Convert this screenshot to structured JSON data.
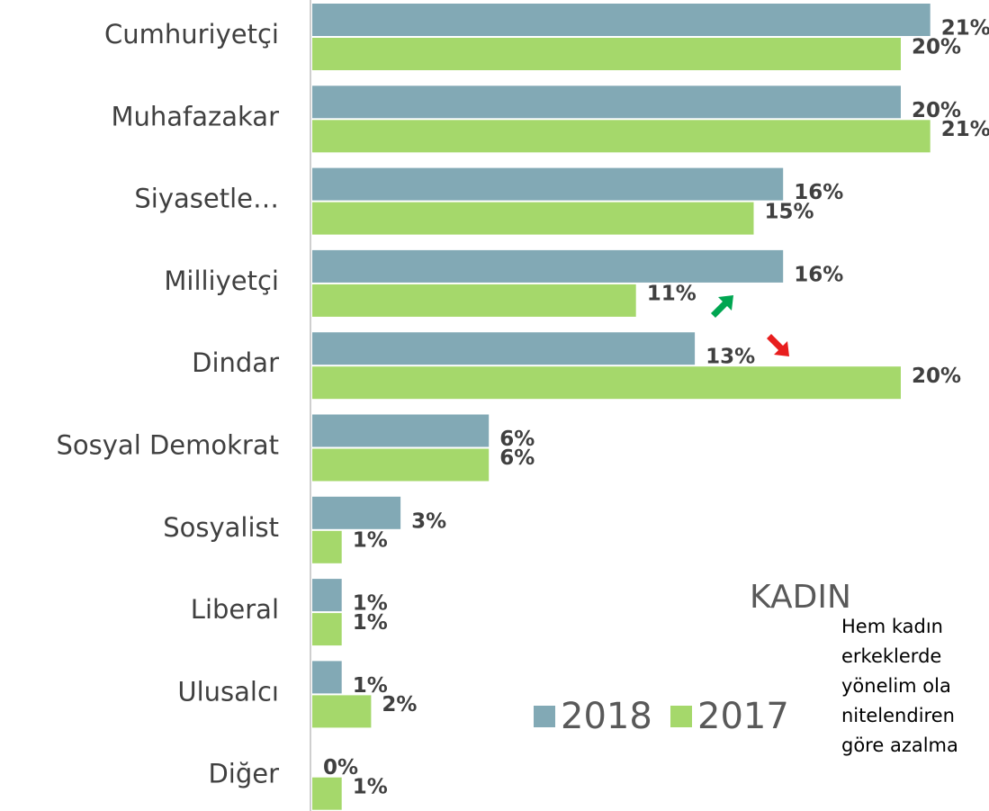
{
  "chart_data": {
    "type": "bar",
    "orientation": "horizontal",
    "categories": [
      "Cumhuriyetçi",
      "Muhafazakar",
      "Siyasetle…",
      "Milliyetçi",
      "Dindar",
      "Sosyal Demokrat",
      "Sosyalist",
      "Liberal",
      "Ulusalcı",
      "Diğer"
    ],
    "series": [
      {
        "name": "2018",
        "color": "#82a9b5",
        "values": [
          21,
          20,
          16,
          16,
          13,
          6,
          3,
          1,
          1,
          0
        ],
        "value_labels": [
          "21%",
          "20%",
          "16%",
          "16%",
          "13%",
          "6%",
          "3%",
          "1%",
          "1%",
          "0%"
        ]
      },
      {
        "name": "2017",
        "color": "#a5d86b",
        "values": [
          20,
          21,
          15,
          11,
          20,
          6,
          1,
          1,
          2,
          1
        ],
        "value_labels": [
          "20%",
          "21%",
          "15%",
          "11%",
          "20%",
          "6%",
          "1%",
          "1%",
          "2%",
          "1%"
        ]
      }
    ],
    "annotations": [
      "KADIN",
      "Hem kadın",
      "erkeklerde",
      "yönelim ola",
      "nitelendiren",
      "göre azalma"
    ]
  }
}
